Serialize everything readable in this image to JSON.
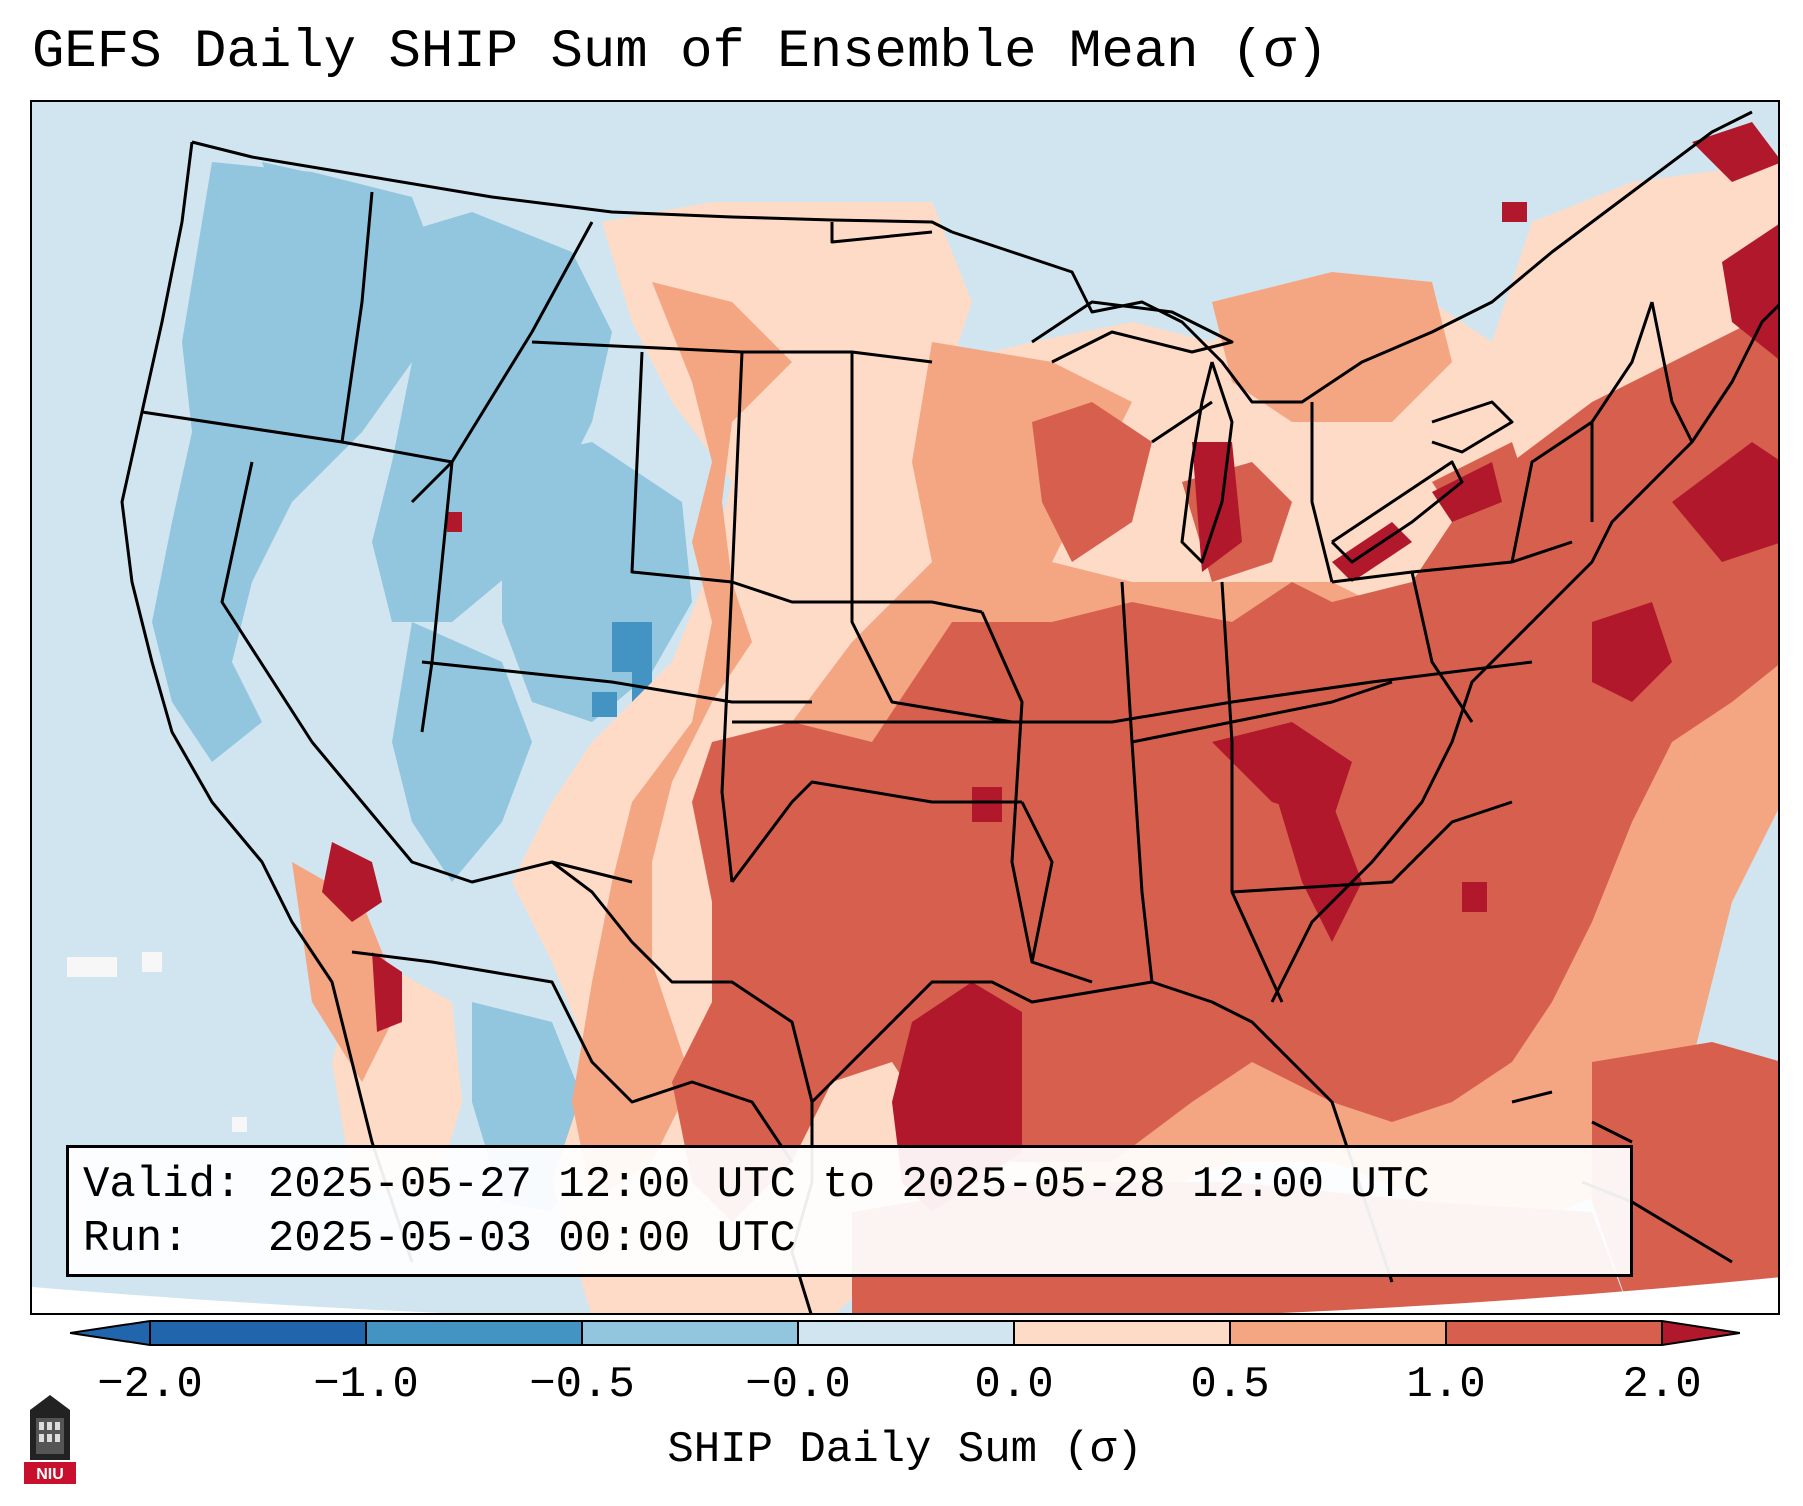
{
  "title": "GEFS Daily SHIP Sum of Ensemble Mean (σ)",
  "info": {
    "valid_label": "Valid:",
    "valid_value": "2025-05-27 12:00 UTC to 2025-05-28 12:00 UTC",
    "run_label": "Run:",
    "run_value": "2025-05-03 00:00 UTC"
  },
  "colorbar": {
    "label": "SHIP Daily Sum (σ)",
    "ticks": [
      "−2.0",
      "−1.0",
      "−0.5",
      "−0.0",
      "0.0",
      "0.5",
      "1.0",
      "2.0"
    ],
    "colors": [
      "#2166ac",
      "#4393c3",
      "#92c5de",
      "#d1e5f0",
      "#fddbc7",
      "#f4a582",
      "#d6604d",
      "#b2182b"
    ],
    "extend": "both"
  },
  "logo": {
    "text": "NIU",
    "icon": "university-tower-icon"
  }
}
